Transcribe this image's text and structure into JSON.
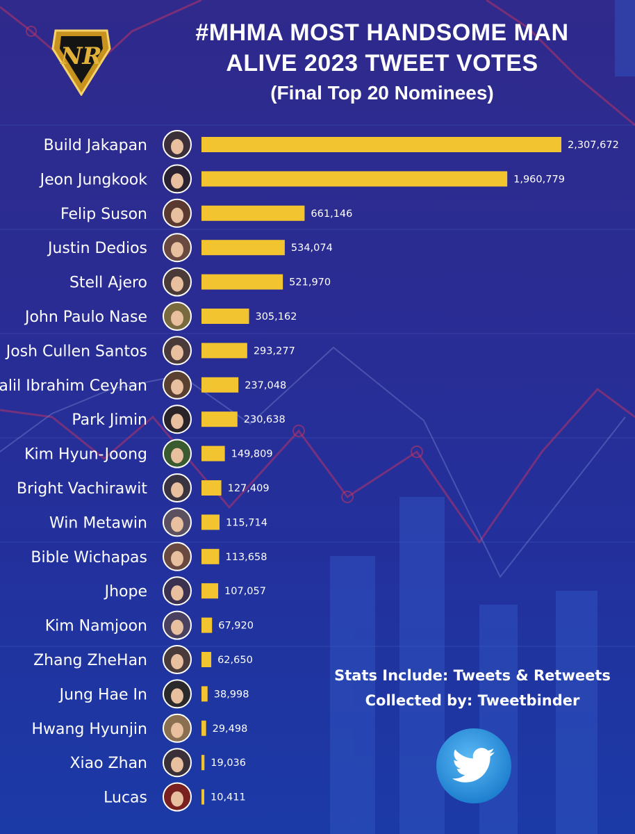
{
  "title_line1": "#MHMA MOST HANDSOME MAN",
  "title_line2": "ALIVE 2023 TWEET VOTES",
  "subtitle": "(Final Top 20 Nominees)",
  "logo_text": "NR",
  "stats_line1": "Stats Include: Tweets & Retweets",
  "stats_line2": "Collected by: Tweetbinder",
  "colors": {
    "bar": "#f2c530",
    "background_top": "#2f2a8c",
    "background_bottom": "#1b3aa6",
    "twitter_blue": "#3a9fe6",
    "logo_gold": "#d9a526"
  },
  "chart_data": {
    "type": "bar",
    "orientation": "horizontal",
    "categories": [
      "Build Jakapan",
      "Jeon Jungkook",
      "Felip Suson",
      "Justin Dedios",
      "Stell Ajero",
      "John Paulo Nase",
      "Josh Cullen Santos",
      "Halil Ibrahim Ceyhan",
      "Park Jimin",
      "Kim Hyun-Joong",
      "Bright Vachirawit",
      "Win Metawin",
      "Bible Wichapas",
      "Jhope",
      "Kim Namjoon",
      "Zhang ZheHan",
      "Jung Hae In",
      "Hwang Hyunjin",
      "Xiao Zhan",
      "Lucas"
    ],
    "values": [
      2307672,
      1960779,
      661146,
      534074,
      521970,
      305162,
      293277,
      237048,
      230638,
      149809,
      127409,
      115714,
      113658,
      107057,
      67920,
      62650,
      38998,
      29498,
      19036,
      10411
    ],
    "value_labels": [
      "2,307,672",
      "1,960,779",
      "661,146",
      "534,074",
      "521,970",
      "305,162",
      "293,277",
      "237,048",
      "230,638",
      "149,809",
      "127,409",
      "115,714",
      "113,658",
      "107,057",
      "67,920",
      "62,650",
      "38,998",
      "29,498",
      "19,036",
      "10,411"
    ],
    "xlim": [
      0,
      2307672
    ],
    "grid": false,
    "legend": "none"
  }
}
